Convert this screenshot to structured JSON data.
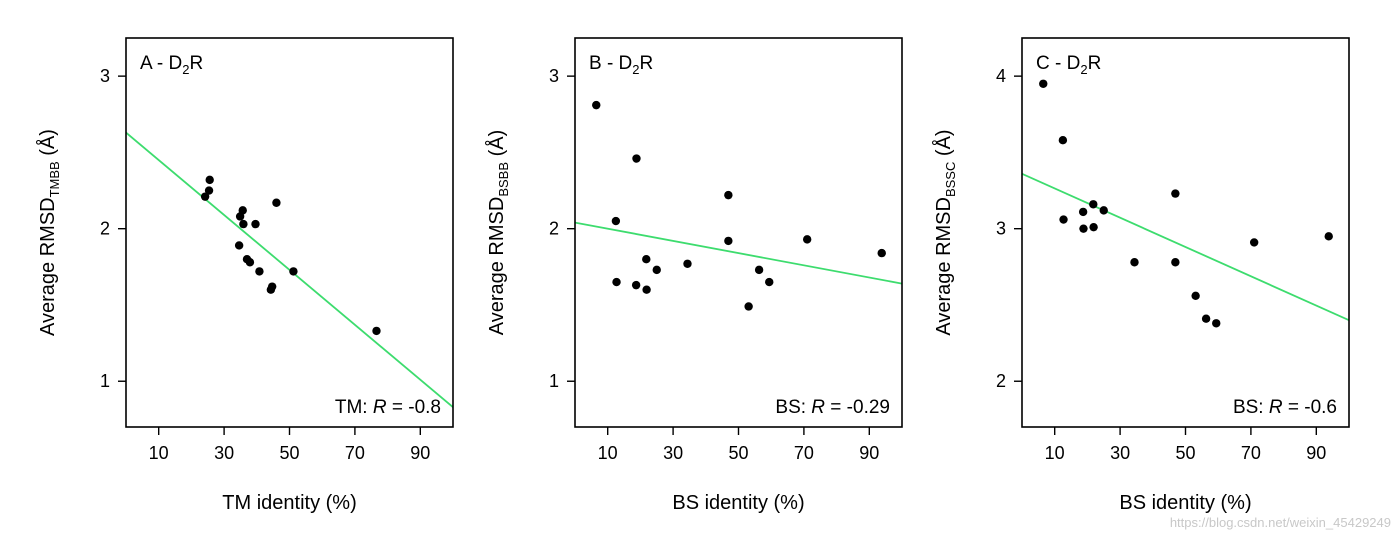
{
  "chart_data": [
    {
      "type": "scatter",
      "panel_title": "A - D",
      "panel_subscript": "2",
      "panel_title_tail": "R",
      "xlabel": "TM identity (%)",
      "ylabel_main": "Average RMSD",
      "ylabel_sub": "TMBB",
      "ylabel_tail": " (Å)",
      "xlim": [
        0,
        100
      ],
      "ylim": [
        0.7,
        3.25
      ],
      "xticks": [
        10,
        30,
        50,
        70,
        90
      ],
      "yticks": [
        1,
        2,
        3
      ],
      "points": [
        {
          "x": 24.2,
          "y": 2.21
        },
        {
          "x": 25.4,
          "y": 2.25
        },
        {
          "x": 25.6,
          "y": 2.32
        },
        {
          "x": 34.6,
          "y": 1.89
        },
        {
          "x": 34.9,
          "y": 2.08
        },
        {
          "x": 35.7,
          "y": 2.12
        },
        {
          "x": 35.9,
          "y": 2.03
        },
        {
          "x": 37.0,
          "y": 1.8
        },
        {
          "x": 37.9,
          "y": 1.78
        },
        {
          "x": 39.6,
          "y": 2.03
        },
        {
          "x": 40.8,
          "y": 1.72
        },
        {
          "x": 44.3,
          "y": 1.6
        },
        {
          "x": 44.7,
          "y": 1.62
        },
        {
          "x": 46.0,
          "y": 2.17
        },
        {
          "x": 51.2,
          "y": 1.72
        },
        {
          "x": 76.6,
          "y": 1.33
        }
      ],
      "fit_line": {
        "x0": 0,
        "y0": 2.63,
        "x1": 100,
        "y1": 0.83
      },
      "stat_prefix": "TM: ",
      "stat_symbol": "R",
      "stat_value": " = -0.8"
    },
    {
      "type": "scatter",
      "panel_title": "B - D",
      "panel_subscript": "2",
      "panel_title_tail": "R",
      "xlabel": "BS identity (%)",
      "ylabel_main": "Average RMSD",
      "ylabel_sub": "BSBB",
      "ylabel_tail": " (Å)",
      "xlim": [
        0,
        100
      ],
      "ylim": [
        0.7,
        3.25
      ],
      "xticks": [
        10,
        30,
        50,
        70,
        90
      ],
      "yticks": [
        1,
        2,
        3
      ],
      "points": [
        {
          "x": 6.5,
          "y": 2.81
        },
        {
          "x": 12.5,
          "y": 2.05
        },
        {
          "x": 12.7,
          "y": 1.65
        },
        {
          "x": 18.8,
          "y": 2.46
        },
        {
          "x": 18.7,
          "y": 1.63
        },
        {
          "x": 21.8,
          "y": 1.8
        },
        {
          "x": 21.9,
          "y": 1.6
        },
        {
          "x": 25.0,
          "y": 1.73
        },
        {
          "x": 34.4,
          "y": 1.77
        },
        {
          "x": 46.9,
          "y": 2.22
        },
        {
          "x": 46.9,
          "y": 1.92
        },
        {
          "x": 53.1,
          "y": 1.49
        },
        {
          "x": 56.3,
          "y": 1.73
        },
        {
          "x": 59.4,
          "y": 1.65
        },
        {
          "x": 71.0,
          "y": 1.93
        },
        {
          "x": 93.8,
          "y": 1.84
        }
      ],
      "fit_line": {
        "x0": 0,
        "y0": 2.04,
        "x1": 100,
        "y1": 1.64
      },
      "stat_prefix": "BS: ",
      "stat_symbol": "R",
      "stat_value": " = -0.29"
    },
    {
      "type": "scatter",
      "panel_title": "C - D",
      "panel_subscript": "2",
      "panel_title_tail": "R",
      "xlabel": "BS identity (%)",
      "ylabel_main": "Average RMSD",
      "ylabel_sub": "BSSC",
      "ylabel_tail": " (Å)",
      "xlim": [
        0,
        100
      ],
      "ylim": [
        1.7,
        4.25
      ],
      "xticks": [
        10,
        30,
        50,
        70,
        90
      ],
      "yticks": [
        2,
        3,
        4
      ],
      "points": [
        {
          "x": 6.5,
          "y": 3.95
        },
        {
          "x": 12.5,
          "y": 3.58
        },
        {
          "x": 12.7,
          "y": 3.06
        },
        {
          "x": 18.7,
          "y": 3.11
        },
        {
          "x": 18.8,
          "y": 3.0
        },
        {
          "x": 21.8,
          "y": 3.16
        },
        {
          "x": 21.9,
          "y": 3.01
        },
        {
          "x": 25.0,
          "y": 3.12
        },
        {
          "x": 34.4,
          "y": 2.78
        },
        {
          "x": 46.9,
          "y": 3.23
        },
        {
          "x": 46.9,
          "y": 2.78
        },
        {
          "x": 53.1,
          "y": 2.56
        },
        {
          "x": 56.3,
          "y": 2.41
        },
        {
          "x": 59.4,
          "y": 2.38
        },
        {
          "x": 71.0,
          "y": 2.91
        },
        {
          "x": 93.8,
          "y": 2.95
        }
      ],
      "fit_line": {
        "x0": 0,
        "y0": 3.36,
        "x1": 100,
        "y1": 2.4
      },
      "stat_prefix": "BS: ",
      "stat_symbol": "R",
      "stat_value": " = -0.6"
    }
  ],
  "colors": {
    "fit_line": "#3ddc6e",
    "points": "#000000",
    "axes": "#000000"
  },
  "watermark": "https://blog.csdn.net/weixin_45429249"
}
